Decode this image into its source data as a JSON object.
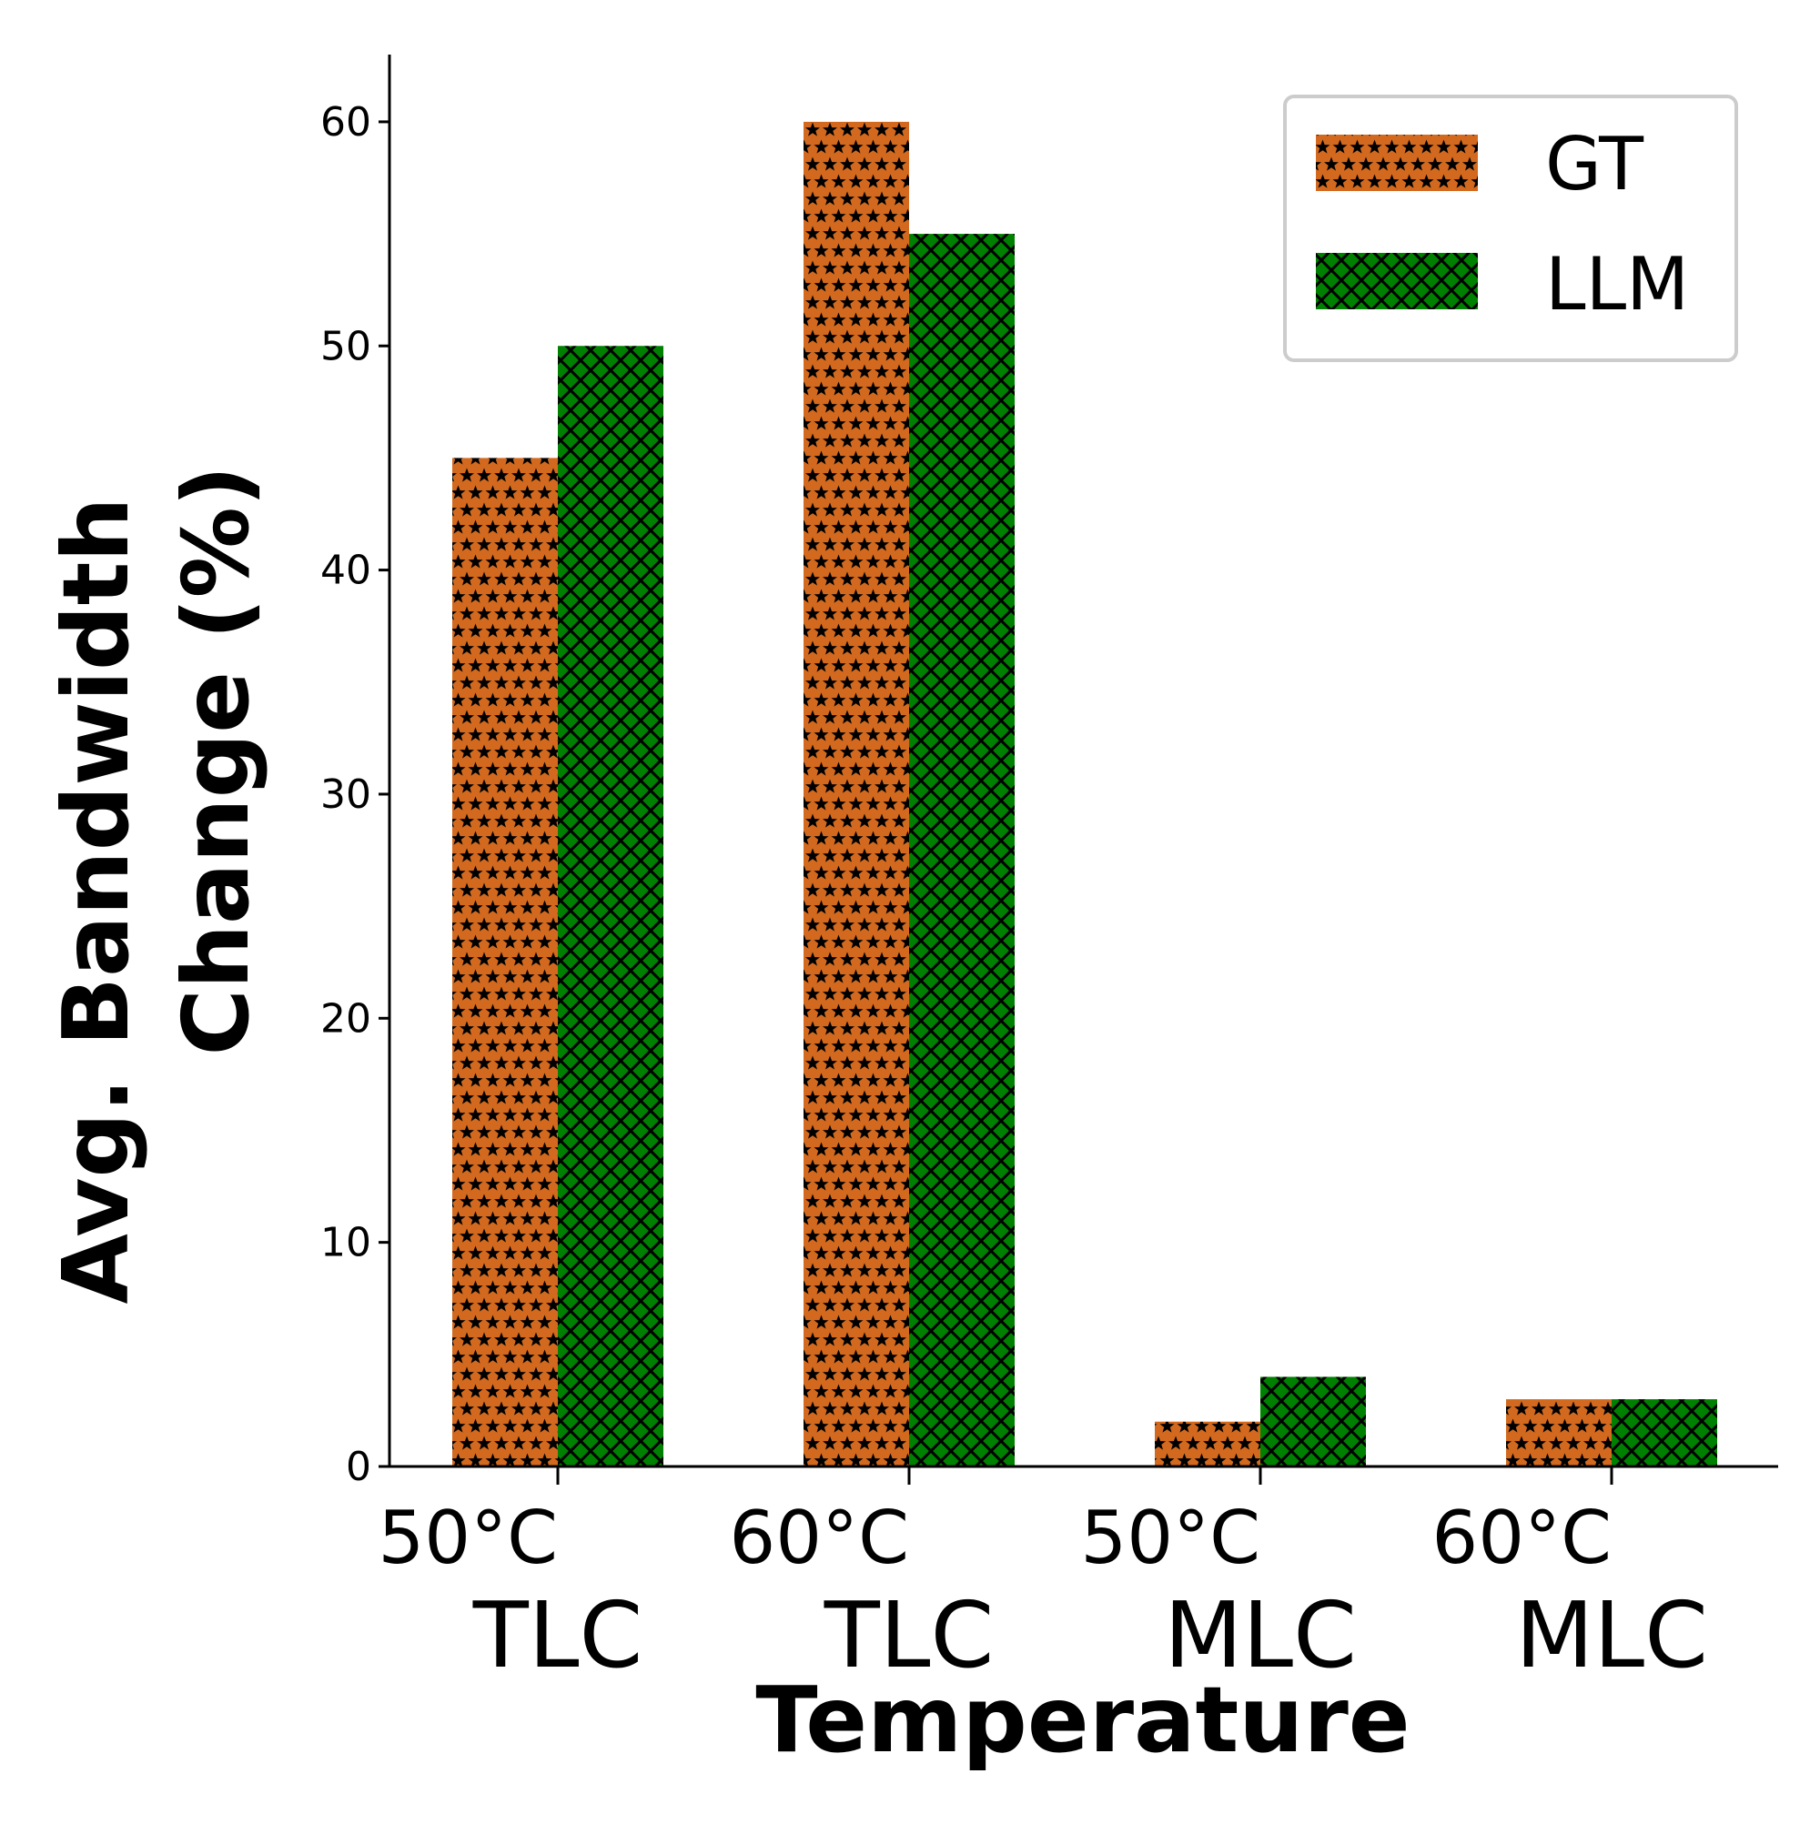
{
  "chart_data": {
    "type": "bar",
    "categories": [
      [
        "50°C",
        "TLC"
      ],
      [
        "60°C",
        "TLC"
      ],
      [
        "50°C",
        "MLC"
      ],
      [
        "60°C",
        "MLC"
      ]
    ],
    "series": [
      {
        "name": "GT",
        "values": [
          45,
          60,
          2,
          3
        ],
        "color": "#d2691e",
        "hatch": "stars"
      },
      {
        "name": "LLM",
        "values": [
          50,
          55,
          4,
          3
        ],
        "color": "#008000",
        "hatch": "crosshatch"
      }
    ],
    "xlabel": "Temperature",
    "ylabel": [
      "Avg. Bandwidth",
      "Change (%)"
    ],
    "ylim": [
      0,
      63
    ],
    "yticks": [
      "0",
      "10",
      "20",
      "30",
      "40",
      "50",
      "60"
    ],
    "grid": false,
    "legend_position": "top-right"
  }
}
